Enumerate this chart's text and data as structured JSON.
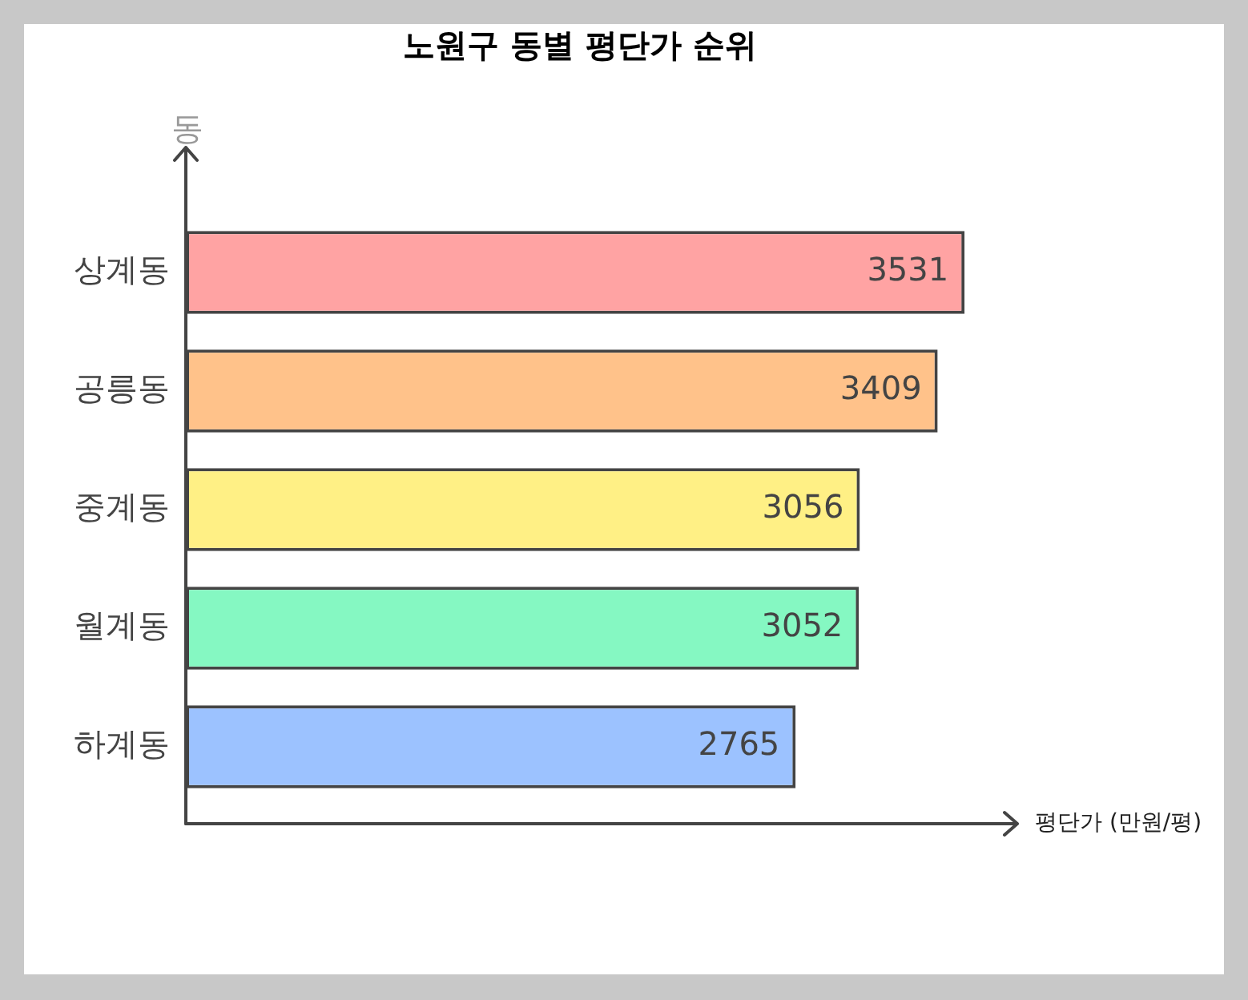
{
  "chart_data": {
    "type": "bar",
    "orientation": "horizontal",
    "title": "노원구 동별 평단가 순위",
    "xlabel": "평단가 (만원/평)",
    "ylabel": "동",
    "categories": [
      "상계동",
      "공릉동",
      "중계동",
      "월계동",
      "하계동"
    ],
    "values": [
      3531,
      3409,
      3056,
      3052,
      2765
    ],
    "colors": [
      "#ffa3a3",
      "#ffc28a",
      "#fff085",
      "#85f8c2",
      "#9cc2ff"
    ],
    "xlim": [
      0,
      3770
    ],
    "data_labels": true,
    "legend": false
  }
}
